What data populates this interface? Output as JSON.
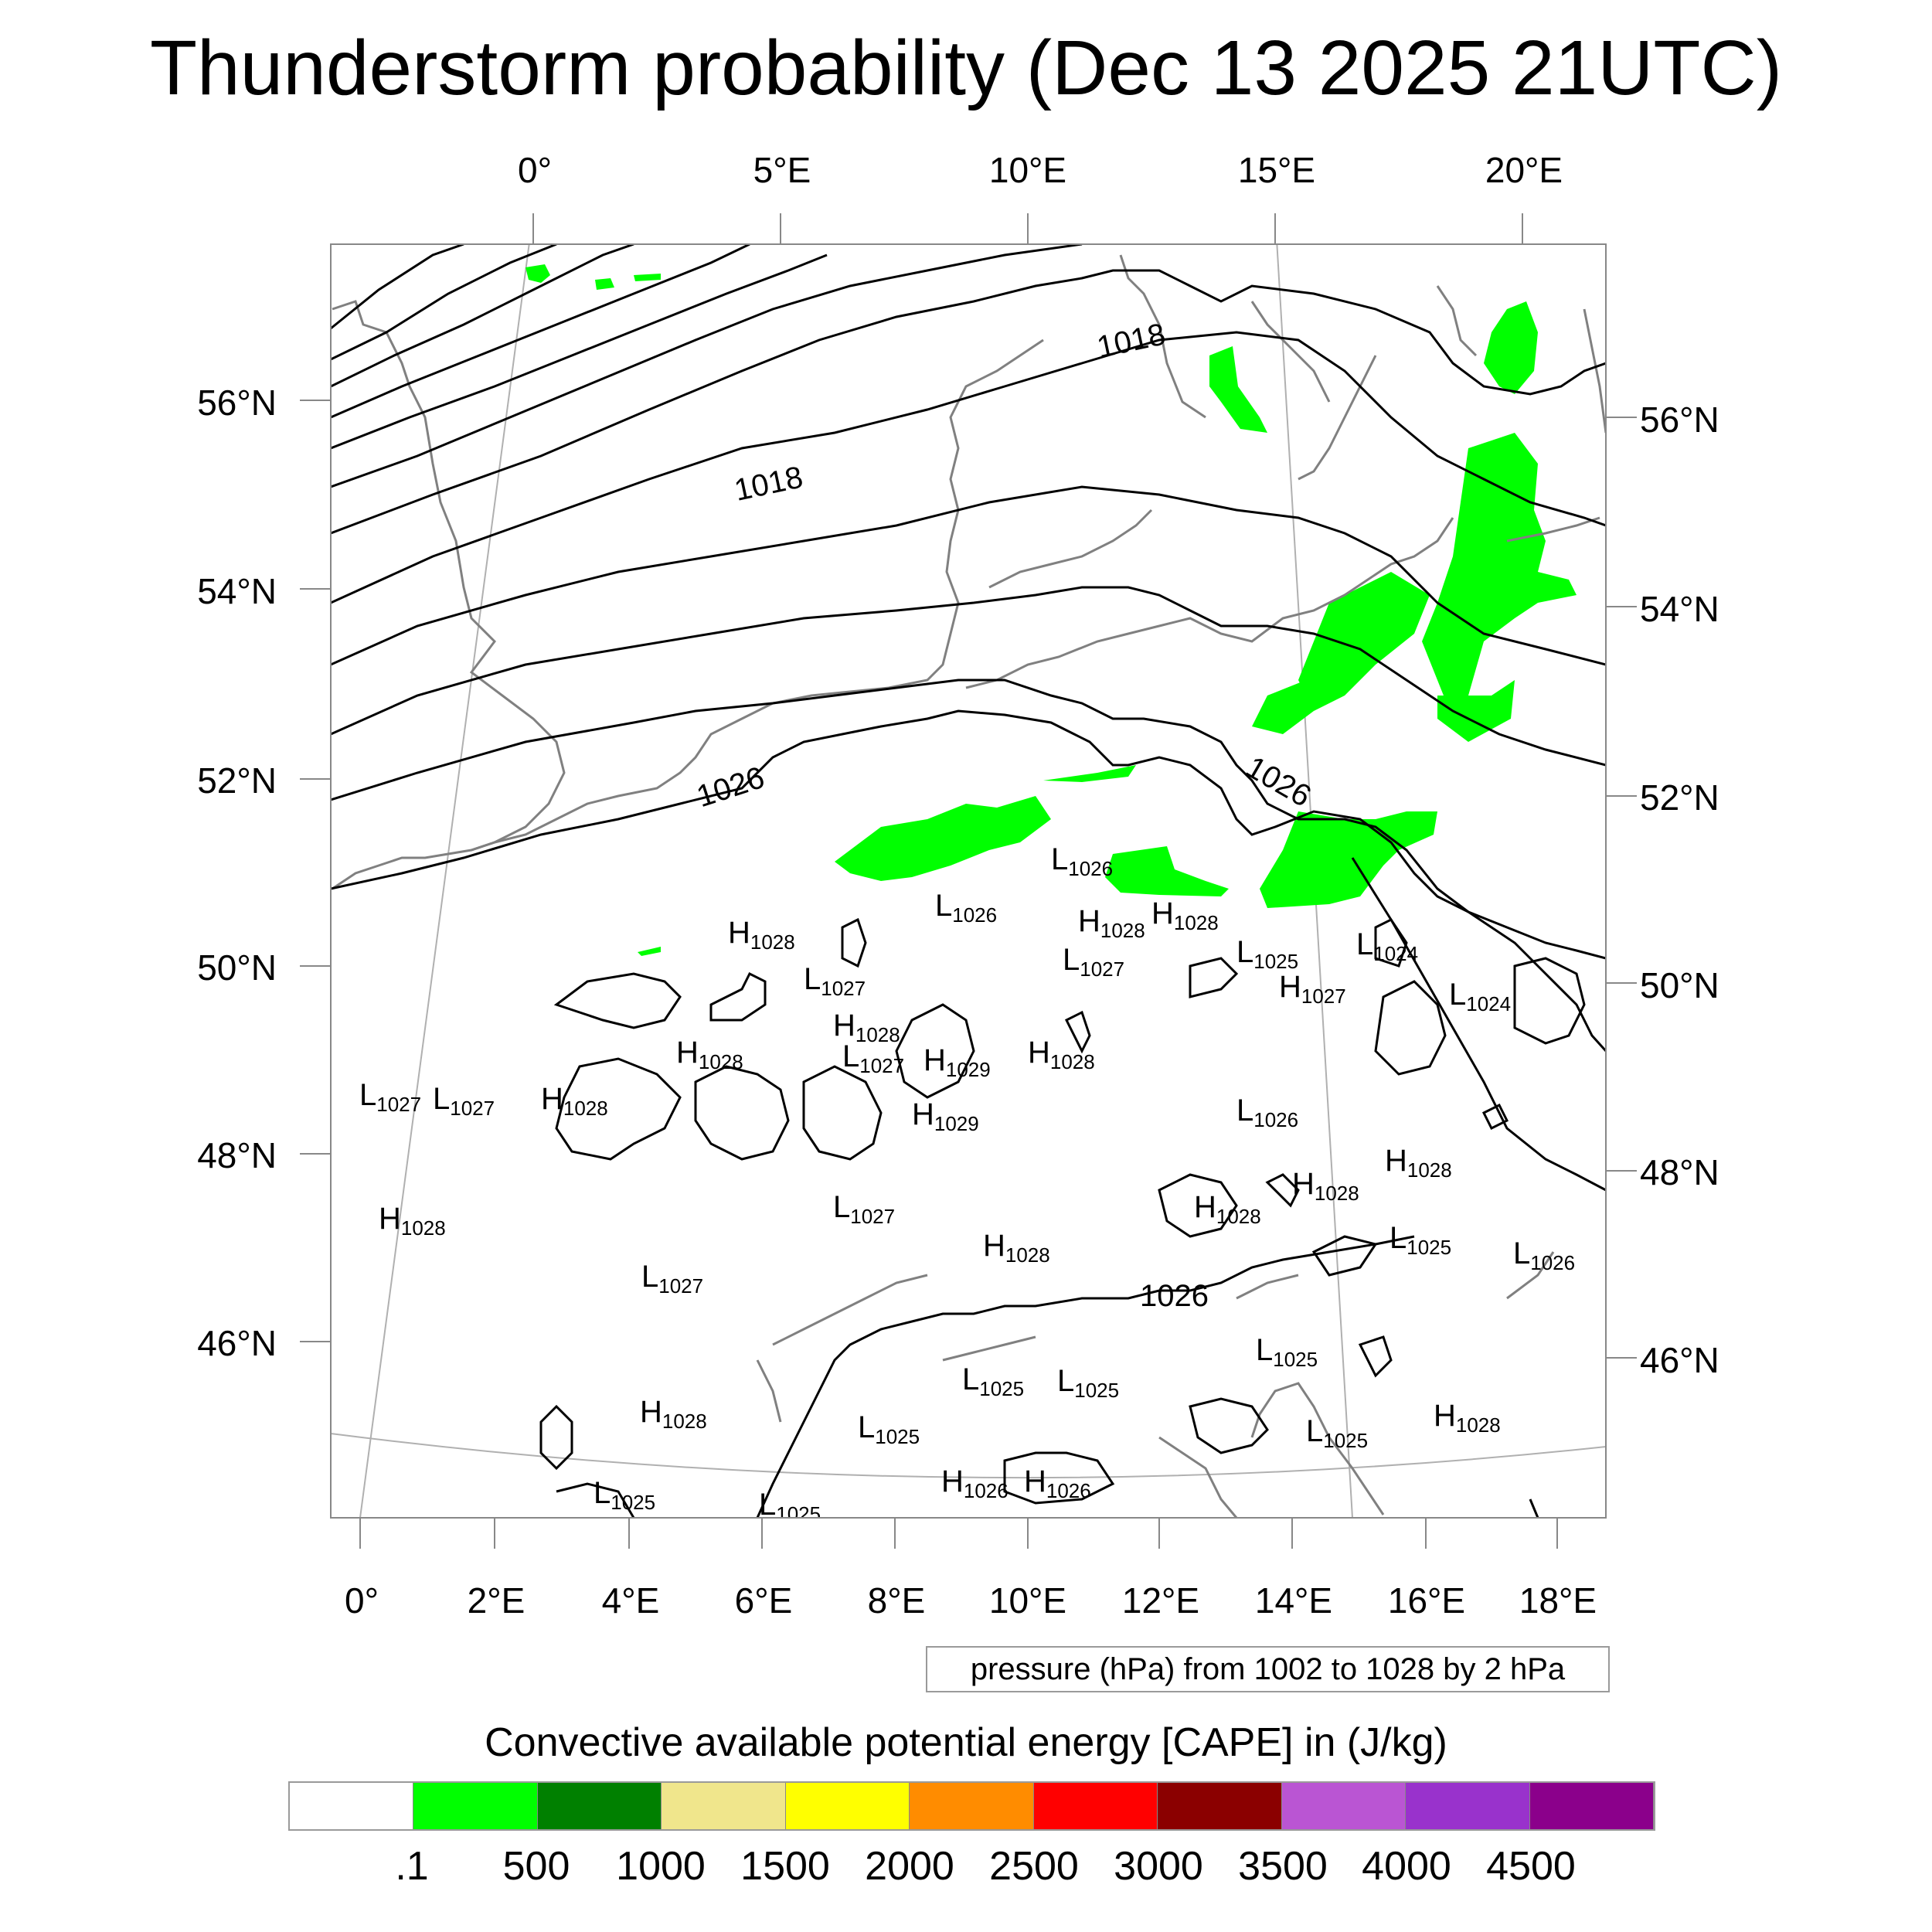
{
  "title": "Thunderstorm probability (Dec 13 2025 21UTC)",
  "axes": {
    "top_lon_ticks": [
      "0°",
      "5°E",
      "10°E",
      "15°E",
      "20°E"
    ],
    "bottom_lon_ticks": [
      "0°",
      "2°E",
      "4°E",
      "6°E",
      "8°E",
      "10°E",
      "12°E",
      "14°E",
      "16°E",
      "18°E"
    ],
    "left_lat_ticks": [
      "56°N",
      "54°N",
      "52°N",
      "50°N",
      "48°N",
      "46°N"
    ],
    "right_lat_ticks": [
      "56°N",
      "54°N",
      "52°N",
      "50°N",
      "48°N",
      "46°N"
    ]
  },
  "contour_legend": "pressure (hPa) from 1002 to 1028 by 2 hPa",
  "contour_labels": [
    "1018",
    "1018",
    "1026",
    "1026",
    "1026"
  ],
  "pressure_centers": [
    {
      "t": "L",
      "v": "1026"
    },
    {
      "t": "L",
      "v": "1026"
    },
    {
      "t": "H",
      "v": "1028"
    },
    {
      "t": "H",
      "v": "1028"
    },
    {
      "t": "H",
      "v": "1028"
    },
    {
      "t": "L",
      "v": "1027"
    },
    {
      "t": "L",
      "v": "1025"
    },
    {
      "t": "L",
      "v": "1024"
    },
    {
      "t": "L",
      "v": "1027"
    },
    {
      "t": "H",
      "v": "1027"
    },
    {
      "t": "L",
      "v": "1024"
    },
    {
      "t": "H",
      "v": "1028"
    },
    {
      "t": "H",
      "v": "1028"
    },
    {
      "t": "L",
      "v": "1027"
    },
    {
      "t": "H",
      "v": "1029"
    },
    {
      "t": "H",
      "v": "1028"
    },
    {
      "t": "L",
      "v": "1027"
    },
    {
      "t": "L",
      "v": "1027"
    },
    {
      "t": "H",
      "v": "1028"
    },
    {
      "t": "H",
      "v": "1029"
    },
    {
      "t": "L",
      "v": "1026"
    },
    {
      "t": "H",
      "v": "1028"
    },
    {
      "t": "H",
      "v": "1028"
    },
    {
      "t": "L",
      "v": "1027"
    },
    {
      "t": "H",
      "v": "1028"
    },
    {
      "t": "H",
      "v": "1028"
    },
    {
      "t": "H",
      "v": "1028"
    },
    {
      "t": "L",
      "v": "1025"
    },
    {
      "t": "L",
      "v": "1026"
    },
    {
      "t": "L",
      "v": "1027"
    },
    {
      "t": "L",
      "v": "1025"
    },
    {
      "t": "L",
      "v": "1025"
    },
    {
      "t": "L",
      "v": "1025"
    },
    {
      "t": "H",
      "v": "1028"
    },
    {
      "t": "H",
      "v": "1028"
    },
    {
      "t": "L",
      "v": "1025"
    },
    {
      "t": "L",
      "v": "1025"
    },
    {
      "t": "L",
      "v": "1025"
    },
    {
      "t": "H",
      "v": "1026"
    },
    {
      "t": "H",
      "v": "1026"
    },
    {
      "t": "L",
      "v": "1025"
    }
  ],
  "colorbar": {
    "title": "Convective available potential energy [CAPE] in (J/kg)",
    "colors": [
      "#ffffff",
      "#00ff00",
      "#008000",
      "#f0e68c",
      "#ffff00",
      "#ff8c00",
      "#ff0000",
      "#8b0000",
      "#ba55d3",
      "#9932cc",
      "#8b008b"
    ],
    "labels": [
      ".1",
      "500",
      "1000",
      "1500",
      "2000",
      "2500",
      "3000",
      "3500",
      "4000",
      "4500"
    ]
  },
  "colors": {
    "cape_green": "#00ff00",
    "coast": "#808080",
    "isobar": "#000000"
  }
}
